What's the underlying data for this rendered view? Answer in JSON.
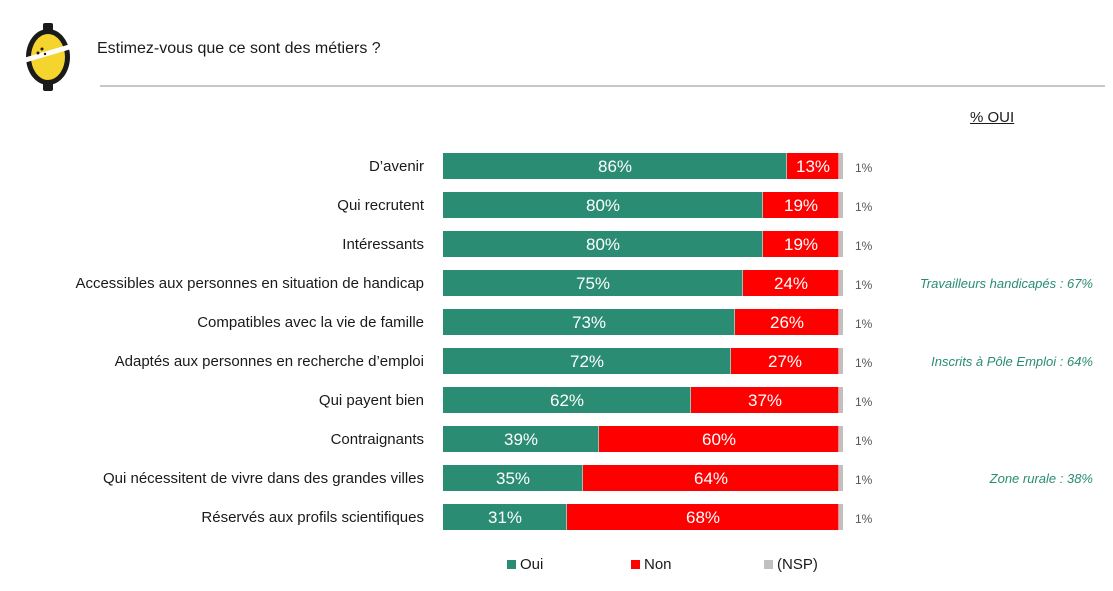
{
  "title": "Estimez-vous que ce sont des métiers ?",
  "pct_header": "% OUI",
  "colors": {
    "oui": "#2a8c72",
    "non": "#ff0000",
    "nsp": "#c0c0c0",
    "accent": "#2a8c72",
    "logo_yellow": "#f5d42e"
  },
  "icons": {
    "logo": "yellow-lemon-logo-icon"
  },
  "chart_data": {
    "type": "bar",
    "orientation": "horizontal",
    "stacked": true,
    "stack_percent": true,
    "categories": [
      "D’avenir",
      "Qui recrutent",
      "Intéressants",
      "Accessibles aux personnes en situation de handicap",
      "Compatibles avec la vie de famille",
      "Adaptés aux personnes en recherche d’emploi",
      "Qui payent bien",
      "Contraignants",
      "Qui nécessitent de vivre dans des grandes villes",
      "Réservés aux profils scientifiques"
    ],
    "series": [
      {
        "name": "Oui",
        "values": [
          86,
          80,
          80,
          75,
          73,
          72,
          62,
          39,
          35,
          31
        ],
        "labels": [
          "86%",
          "80%",
          "80%",
          "75%",
          "73%",
          "72%",
          "62%",
          "39%",
          "35%",
          "31%"
        ]
      },
      {
        "name": "Non",
        "values": [
          13,
          19,
          19,
          24,
          26,
          27,
          37,
          60,
          64,
          68
        ],
        "labels": [
          "13%",
          "19%",
          "19%",
          "24%",
          "26%",
          "27%",
          "37%",
          "60%",
          "64%",
          "68%"
        ]
      },
      {
        "name": "(NSP)",
        "values": [
          1,
          1,
          1,
          1,
          1,
          1,
          1,
          1,
          1,
          1
        ],
        "labels": [
          "1%",
          "1%",
          "1%",
          "1%",
          "1%",
          "1%",
          "1%",
          "1%",
          "1%",
          "1%"
        ]
      }
    ],
    "annotations": [
      "",
      "",
      "",
      "Travailleurs handicapés : 67%",
      "",
      "Inscrits à Pôle Emploi : 64%",
      "",
      "",
      "Zone rurale : 38%",
      ""
    ],
    "xlim": [
      0,
      100
    ],
    "grid": false,
    "legend": "bottom"
  }
}
